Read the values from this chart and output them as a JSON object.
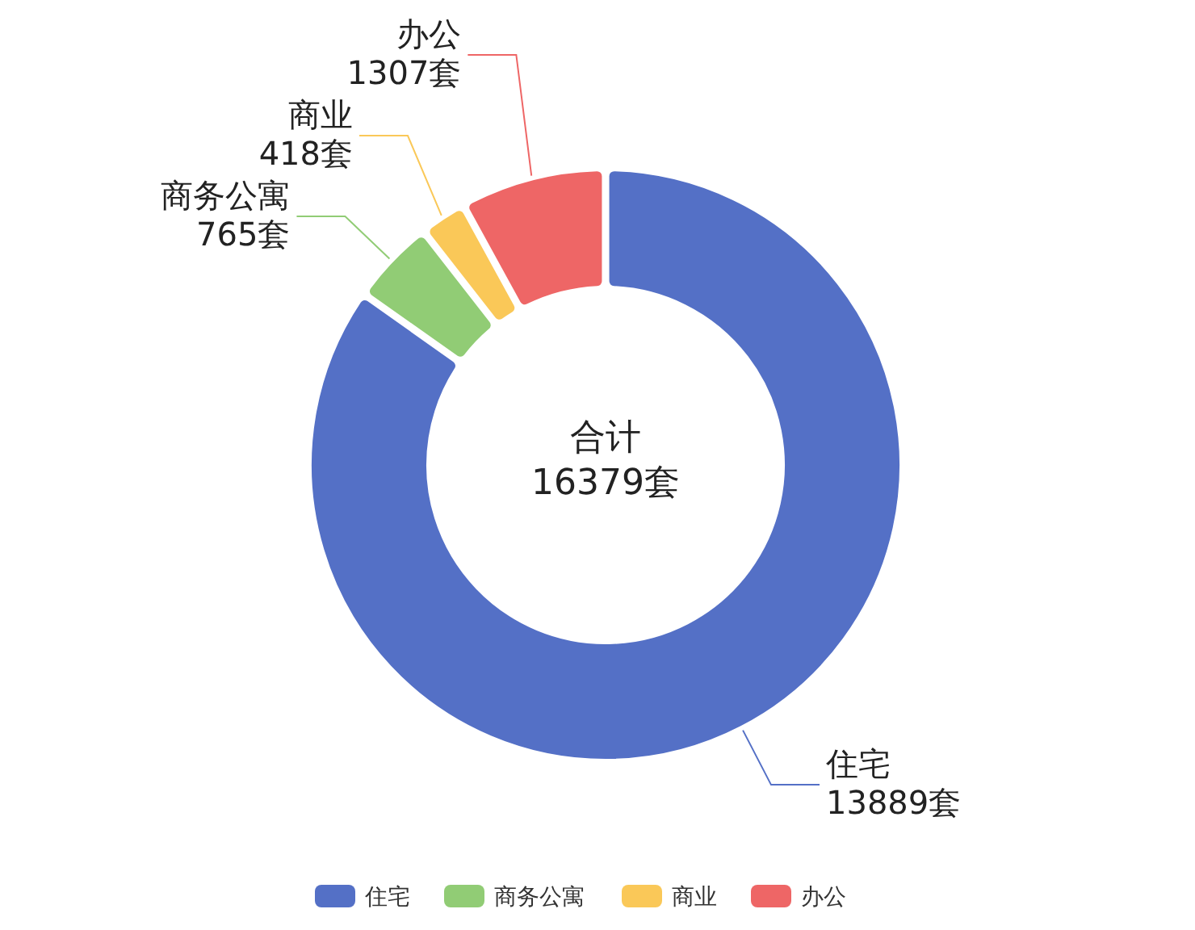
{
  "chart_data": {
    "type": "donut",
    "categories": [
      "住宅",
      "商务公寓",
      "商业",
      "办公"
    ],
    "values": [
      13889,
      765,
      418,
      1307
    ],
    "colors": [
      "#5470c6",
      "#91cc75",
      "#fac858",
      "#ee6666"
    ],
    "value_labels": [
      "13889套",
      "765套",
      "418套",
      "1307套"
    ],
    "annotations": [
      "合计",
      "16379套"
    ],
    "legend": "bottom"
  }
}
